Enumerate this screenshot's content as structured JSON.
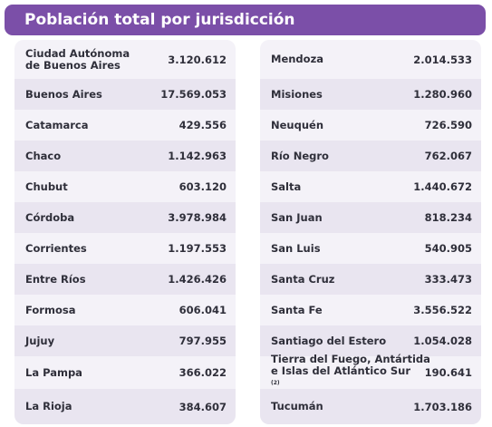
{
  "title": "Población total por jurisdicción",
  "left": [
    {
      "name_line1": "Ciudad Autónoma",
      "name_line2": "de Buenos Aires",
      "value": "3.120.612"
    },
    {
      "name": "Buenos Aires",
      "value": "17.569.053"
    },
    {
      "name": "Catamarca",
      "value": "429.556"
    },
    {
      "name": "Chaco",
      "value": "1.142.963"
    },
    {
      "name": "Chubut",
      "value": "603.120"
    },
    {
      "name": "Córdoba",
      "value": "3.978.984"
    },
    {
      "name": "Corrientes",
      "value": "1.197.553"
    },
    {
      "name": "Entre Ríos",
      "value": "1.426.426"
    },
    {
      "name": "Formosa",
      "value": "606.041"
    },
    {
      "name": "Jujuy",
      "value": "797.955"
    },
    {
      "name": "La Pampa",
      "value": "366.022"
    },
    {
      "name": "La Rioja",
      "value": "384.607"
    }
  ],
  "right": [
    {
      "name": "Mendoza",
      "value": "2.014.533"
    },
    {
      "name": "Misiones",
      "value": "1.280.960"
    },
    {
      "name": "Neuquén",
      "value": "726.590"
    },
    {
      "name": "Río Negro",
      "value": "762.067"
    },
    {
      "name": "Salta",
      "value": "1.440.672"
    },
    {
      "name": "San Juan",
      "value": "818.234"
    },
    {
      "name": "San Luis",
      "value": "540.905"
    },
    {
      "name": "Santa Cruz",
      "value": "333.473"
    },
    {
      "name": "Santa Fe",
      "value": "3.556.522"
    },
    {
      "name": "Santiago del Estero",
      "value": "1.054.028"
    },
    {
      "name_line1": "Tierra del Fuego, Antártida",
      "name_line2": "e Islas del Atlántico Sur",
      "note": "(2)",
      "value": "190.641"
    },
    {
      "name": "Tucumán",
      "value": "1.703.186"
    }
  ]
}
